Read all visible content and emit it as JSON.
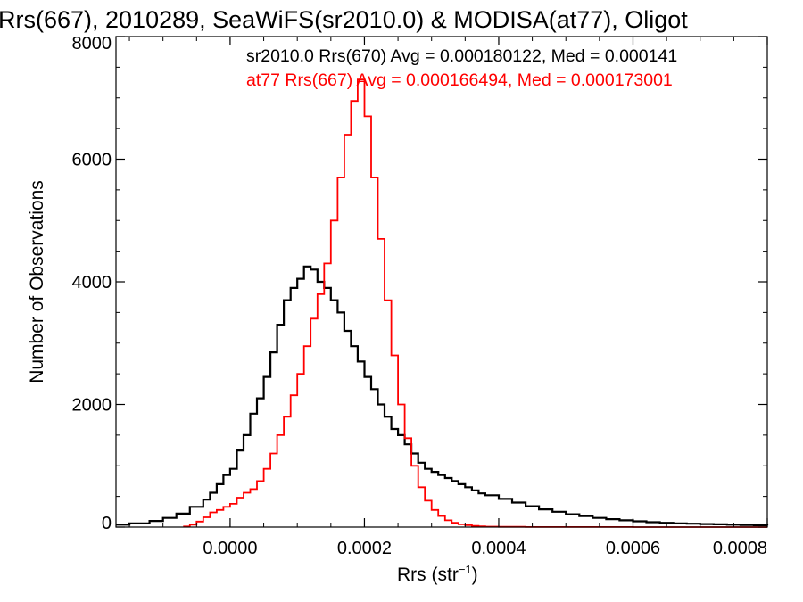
{
  "chart_data": {
    "type": "line",
    "title": "Rrs(667), 2010289, SeaWiFS(sr2010.0) & MODISA(at77), Oligot",
    "xlabel_main": "Rrs (str",
    "xlabel_sup": "−1",
    "xlabel_close": ")",
    "ylabel": "Number of Observations",
    "xlim": [
      -0.00017,
      0.0008
    ],
    "ylim": [
      0,
      8000
    ],
    "x_ticks": [
      0.0,
      0.0002,
      0.0004,
      0.0006,
      0.0008
    ],
    "x_tick_labels": [
      "0.0000",
      "0.0002",
      "0.0004",
      "0.0006",
      "0.0008"
    ],
    "y_ticks": [
      0,
      2000,
      4000,
      6000,
      8000
    ],
    "y_tick_labels": [
      "0",
      "2000",
      "4000",
      "6000",
      "8000"
    ],
    "legend": [
      {
        "text": "sr2010.0 Rrs(670) Avg = 0.000180122, Med = 0.000141",
        "color": "#000000"
      },
      {
        "text": "at77 Rrs(667) Avg = 0.000166494, Med = 0.000173001",
        "color": "#ff0000"
      }
    ],
    "series": [
      {
        "color": "#000000",
        "style": "step",
        "points": [
          [
            -0.00017,
            40
          ],
          [
            -0.00015,
            60
          ],
          [
            -0.00012,
            100
          ],
          [
            -0.0001,
            150
          ],
          [
            -8e-05,
            220
          ],
          [
            -6e-05,
            330
          ],
          [
            -4e-05,
            450
          ],
          [
            -3e-05,
            560
          ],
          [
            -2e-05,
            700
          ],
          [
            -1e-05,
            850
          ],
          [
            0.0,
            950
          ],
          [
            1e-05,
            1250
          ],
          [
            2e-05,
            1500
          ],
          [
            3e-05,
            1850
          ],
          [
            4e-05,
            2100
          ],
          [
            5e-05,
            2450
          ],
          [
            6e-05,
            2850
          ],
          [
            7e-05,
            3300
          ],
          [
            8e-05,
            3700
          ],
          [
            9e-05,
            3900
          ],
          [
            0.0001,
            4050
          ],
          [
            0.00011,
            4250
          ],
          [
            0.00012,
            4200
          ],
          [
            0.00013,
            4000
          ],
          [
            0.00014,
            3900
          ],
          [
            0.00015,
            3700
          ],
          [
            0.00016,
            3500
          ],
          [
            0.00017,
            3200
          ],
          [
            0.00018,
            2950
          ],
          [
            0.00019,
            2700
          ],
          [
            0.0002,
            2450
          ],
          [
            0.00021,
            2250
          ],
          [
            0.00022,
            2000
          ],
          [
            0.00023,
            1800
          ],
          [
            0.00024,
            1600
          ],
          [
            0.00025,
            1500
          ],
          [
            0.00026,
            1350
          ],
          [
            0.00027,
            1200
          ],
          [
            0.00028,
            1050
          ],
          [
            0.00029,
            950
          ],
          [
            0.0003,
            900
          ],
          [
            0.00031,
            850
          ],
          [
            0.00032,
            800
          ],
          [
            0.00033,
            750
          ],
          [
            0.00034,
            700
          ],
          [
            0.00035,
            650
          ],
          [
            0.00036,
            600
          ],
          [
            0.00037,
            550
          ],
          [
            0.00038,
            520
          ],
          [
            0.0004,
            460
          ],
          [
            0.00042,
            400
          ],
          [
            0.00044,
            340
          ],
          [
            0.00046,
            290
          ],
          [
            0.00048,
            250
          ],
          [
            0.0005,
            210
          ],
          [
            0.00052,
            180
          ],
          [
            0.00054,
            150
          ],
          [
            0.00056,
            130
          ],
          [
            0.00058,
            110
          ],
          [
            0.0006,
            95
          ],
          [
            0.00062,
            80
          ],
          [
            0.00064,
            70
          ],
          [
            0.00066,
            60
          ],
          [
            0.00068,
            55
          ],
          [
            0.0007,
            50
          ],
          [
            0.00072,
            45
          ],
          [
            0.00074,
            40
          ],
          [
            0.00076,
            35
          ],
          [
            0.00078,
            30
          ],
          [
            0.0008,
            25
          ]
        ]
      },
      {
        "color": "#ff0000",
        "style": "step",
        "points": [
          [
            -7e-05,
            10
          ],
          [
            -6e-05,
            40
          ],
          [
            -5e-05,
            90
          ],
          [
            -4e-05,
            160
          ],
          [
            -3e-05,
            240
          ],
          [
            -2e-05,
            280
          ],
          [
            -1e-05,
            330
          ],
          [
            0.0,
            380
          ],
          [
            1e-05,
            480
          ],
          [
            2e-05,
            560
          ],
          [
            3e-05,
            620
          ],
          [
            4e-05,
            750
          ],
          [
            5e-05,
            950
          ],
          [
            6e-05,
            1200
          ],
          [
            7e-05,
            1500
          ],
          [
            8e-05,
            1800
          ],
          [
            9e-05,
            2150
          ],
          [
            0.0001,
            2500
          ],
          [
            0.00011,
            2950
          ],
          [
            0.00012,
            3400
          ],
          [
            0.00013,
            3800
          ],
          [
            0.00014,
            4300
          ],
          [
            0.00015,
            5000
          ],
          [
            0.00016,
            5700
          ],
          [
            0.00017,
            6400
          ],
          [
            0.00018,
            6950
          ],
          [
            0.00019,
            7300
          ],
          [
            0.0002,
            6700
          ],
          [
            0.00021,
            5700
          ],
          [
            0.00022,
            4700
          ],
          [
            0.00023,
            3700
          ],
          [
            0.00024,
            2800
          ],
          [
            0.00025,
            2000
          ],
          [
            0.00026,
            1450
          ],
          [
            0.00027,
            1000
          ],
          [
            0.00028,
            650
          ],
          [
            0.00029,
            430
          ],
          [
            0.0003,
            280
          ],
          [
            0.00031,
            180
          ],
          [
            0.00032,
            110
          ],
          [
            0.00033,
            70
          ],
          [
            0.00034,
            45
          ],
          [
            0.00035,
            30
          ],
          [
            0.00036,
            20
          ],
          [
            0.00037,
            12
          ],
          [
            0.00038,
            8
          ],
          [
            0.0004,
            4
          ],
          [
            0.00044,
            2
          ],
          [
            0.0005,
            1
          ],
          [
            0.0006,
            0
          ],
          [
            0.0008,
            0
          ]
        ]
      }
    ]
  }
}
